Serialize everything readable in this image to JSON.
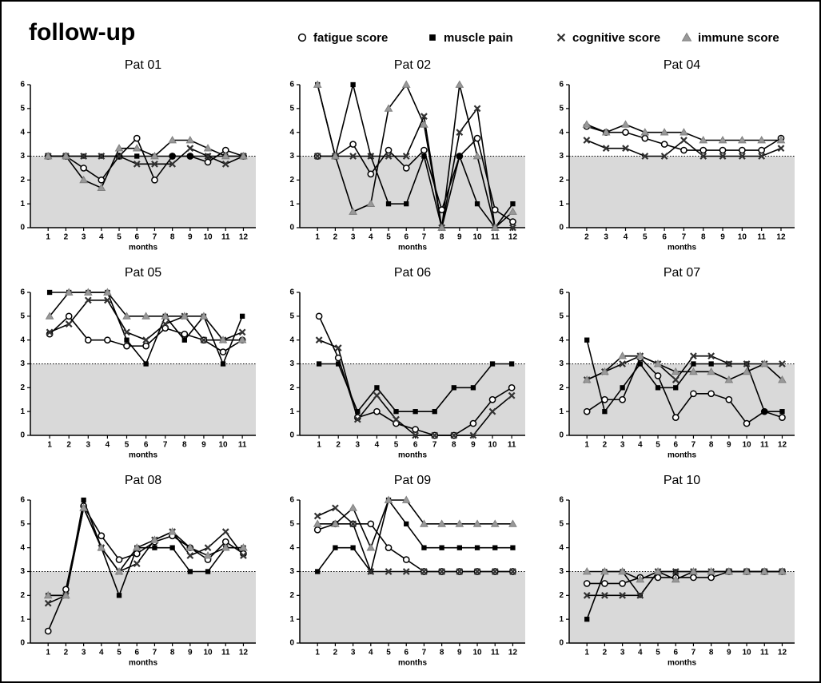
{
  "title": "follow-up",
  "chart_data": [
    {
      "type": "line",
      "title": "Pat 01",
      "x_label": "months",
      "x": [
        1,
        2,
        3,
        4,
        5,
        6,
        7,
        8,
        9,
        10,
        11,
        12
      ],
      "xlim": [
        0,
        12.7
      ],
      "xticks": [
        1,
        2,
        3,
        4,
        5,
        6,
        7,
        8,
        9,
        10,
        11,
        12
      ],
      "ylim": [
        0,
        6
      ],
      "yticks": [
        0,
        1,
        2,
        3,
        4,
        5,
        6
      ],
      "shaded_below": 3,
      "series": [
        {
          "name": "fatigue score",
          "color": "#000000",
          "marker": "circle",
          "values": [
            3,
            3,
            2.5,
            2,
            3,
            3.75,
            2,
            3,
            3,
            2.75,
            3.25,
            3
          ]
        },
        {
          "name": "muscle pain",
          "color": "#000000",
          "marker": "square",
          "values": [
            3,
            3,
            3,
            3,
            3,
            3,
            3,
            3,
            3,
            3,
            3,
            3
          ]
        },
        {
          "name": "cognitive score",
          "color": "#000000",
          "marker": "cross",
          "values": [
            3,
            3,
            3,
            3,
            3,
            2.67,
            2.67,
            2.67,
            3.33,
            3,
            2.67,
            3
          ]
        },
        {
          "name": "immune score",
          "color": "#808080",
          "marker": "triangle",
          "values": [
            3,
            3,
            2,
            1.67,
            3.33,
            3.33,
            3,
            3.67,
            3.67,
            3.33,
            3,
            3
          ]
        }
      ]
    },
    {
      "type": "line",
      "title": "Pat 02",
      "x_label": "months",
      "x": [
        1,
        2,
        3,
        4,
        5,
        6,
        7,
        8,
        9,
        10,
        11,
        12
      ],
      "xlim": [
        0,
        12.7
      ],
      "xticks": [
        1,
        2,
        3,
        4,
        5,
        6,
        7,
        8,
        9,
        10,
        11,
        12
      ],
      "ylim": [
        0,
        6
      ],
      "yticks": [
        0,
        1,
        2,
        3,
        4,
        5,
        6
      ],
      "shaded_below": 3,
      "series": [
        {
          "name": "fatigue score",
          "color": "#000000",
          "marker": "circle",
          "values": [
            3,
            3,
            3.5,
            2.25,
            3.25,
            2.5,
            3.25,
            0.75,
            3,
            3.75,
            0.75,
            0.25
          ]
        },
        {
          "name": "muscle pain",
          "color": "#000000",
          "marker": "square",
          "values": [
            6,
            3,
            6,
            3,
            1,
            1,
            3,
            0,
            3,
            1,
            0,
            1
          ]
        },
        {
          "name": "cognitive score",
          "color": "#000000",
          "marker": "cross",
          "values": [
            3,
            3,
            3,
            3,
            3,
            3,
            4.67,
            0,
            4,
            5,
            0,
            0
          ]
        },
        {
          "name": "immune score",
          "color": "#808080",
          "marker": "triangle",
          "values": [
            6,
            3,
            0.67,
            1,
            5,
            6,
            4.33,
            0,
            6,
            3,
            0,
            0.67
          ]
        }
      ]
    },
    {
      "type": "line",
      "title": "Pat 04",
      "x_label": "months",
      "x": [
        2,
        3,
        4,
        5,
        6,
        7,
        8,
        9,
        10,
        11,
        12
      ],
      "xlim": [
        1.1,
        12.7
      ],
      "xticks": [
        2,
        3,
        4,
        5,
        6,
        7,
        8,
        9,
        10,
        11,
        12
      ],
      "ylim": [
        0,
        6
      ],
      "yticks": [
        0,
        1,
        2,
        3,
        4,
        5,
        6
      ],
      "shaded_below": 3,
      "series": [
        {
          "name": "fatigue score",
          "color": "#000000",
          "marker": "circle",
          "values": [
            4.25,
            4,
            4,
            3.75,
            3.5,
            3.25,
            3.25,
            3.25,
            3.25,
            3.25,
            3.75
          ]
        },
        {
          "name": "muscle pain",
          "color": "#000000",
          "marker": "square",
          "values": [
            null,
            null,
            null,
            null,
            null,
            null,
            null,
            null,
            null,
            null,
            null
          ]
        },
        {
          "name": "cognitive score",
          "color": "#000000",
          "marker": "cross",
          "values": [
            3.67,
            3.33,
            3.33,
            3,
            3,
            3.67,
            3,
            3,
            3,
            3,
            3.33
          ]
        },
        {
          "name": "immune score",
          "color": "#808080",
          "marker": "triangle",
          "values": [
            4.33,
            4,
            4.33,
            4,
            4,
            4,
            3.67,
            3.67,
            3.67,
            3.67,
            3.67
          ]
        }
      ]
    },
    {
      "type": "line",
      "title": "Pat 05",
      "x_label": "months",
      "x": [
        1,
        2,
        3,
        4,
        5,
        6,
        7,
        8,
        9,
        10,
        11
      ],
      "xlim": [
        0,
        11.7
      ],
      "xticks": [
        1,
        2,
        3,
        4,
        5,
        6,
        7,
        8,
        9,
        10,
        11
      ],
      "ylim": [
        0,
        6
      ],
      "yticks": [
        0,
        1,
        2,
        3,
        4,
        5,
        6
      ],
      "shaded_below": 3,
      "series": [
        {
          "name": "fatigue score",
          "color": "#000000",
          "marker": "circle",
          "values": [
            4.25,
            5,
            4,
            4,
            3.75,
            3.75,
            4.5,
            4.25,
            4,
            3.5,
            4
          ]
        },
        {
          "name": "muscle pain",
          "color": "#000000",
          "marker": "square",
          "values": [
            6,
            6,
            6,
            6,
            4,
            3,
            5,
            4,
            5,
            3,
            5
          ]
        },
        {
          "name": "cognitive score",
          "color": "#000000",
          "marker": "cross",
          "values": [
            4.33,
            4.67,
            5.67,
            5.67,
            4.33,
            4,
            4.67,
            5,
            4,
            4,
            4.33
          ]
        },
        {
          "name": "immune score",
          "color": "#808080",
          "marker": "triangle",
          "values": [
            5,
            6,
            6,
            6,
            5,
            5,
            5,
            5,
            5,
            4,
            4
          ]
        }
      ]
    },
    {
      "type": "line",
      "title": "Pat 06",
      "x_label": "months",
      "x": [
        1,
        2,
        3,
        4,
        5,
        6,
        7,
        8,
        9,
        10,
        11
      ],
      "xlim": [
        0,
        11.7
      ],
      "xticks": [
        1,
        2,
        3,
        4,
        5,
        6,
        7,
        8,
        9,
        10,
        11
      ],
      "ylim": [
        0,
        6
      ],
      "yticks": [
        0,
        1,
        2,
        3,
        4,
        5,
        6
      ],
      "shaded_below": 3,
      "series": [
        {
          "name": "fatigue score",
          "color": "#000000",
          "marker": "circle",
          "values": [
            5,
            3.25,
            0.75,
            1,
            0.5,
            0.25,
            0,
            0,
            0.5,
            1.5,
            2
          ]
        },
        {
          "name": "muscle pain",
          "color": "#000000",
          "marker": "square",
          "values": [
            3,
            3,
            1,
            2,
            1,
            1,
            1,
            2,
            2,
            3,
            3
          ]
        },
        {
          "name": "cognitive score",
          "color": "#000000",
          "marker": "cross",
          "values": [
            4,
            3.67,
            0.67,
            1.67,
            0.67,
            0,
            0,
            0,
            0,
            1,
            1.67
          ]
        },
        {
          "name": "immune score",
          "color": "#808080",
          "marker": "triangle",
          "values": [
            null,
            null,
            null,
            null,
            null,
            null,
            null,
            null,
            null,
            null,
            null
          ]
        }
      ]
    },
    {
      "type": "line",
      "title": "Pat 07",
      "x_label": "months",
      "x": [
        1,
        2,
        3,
        4,
        5,
        6,
        7,
        8,
        9,
        10,
        11,
        12
      ],
      "xlim": [
        0,
        12.7
      ],
      "xticks": [
        1,
        2,
        3,
        4,
        5,
        6,
        7,
        8,
        9,
        10,
        11,
        12
      ],
      "ylim": [
        0,
        6
      ],
      "yticks": [
        0,
        1,
        2,
        3,
        4,
        5,
        6
      ],
      "shaded_below": 3,
      "series": [
        {
          "name": "fatigue score",
          "color": "#000000",
          "marker": "circle",
          "values": [
            1,
            1.5,
            1.5,
            3.25,
            2.5,
            0.75,
            1.75,
            1.75,
            1.5,
            0.5,
            1,
            0.75
          ]
        },
        {
          "name": "muscle pain",
          "color": "#000000",
          "marker": "square",
          "values": [
            4,
            1,
            2,
            3,
            2,
            2,
            3,
            3,
            3,
            3,
            1,
            1
          ]
        },
        {
          "name": "cognitive score",
          "color": "#000000",
          "marker": "cross",
          "values": [
            2.33,
            2.67,
            3,
            3.33,
            3,
            2.33,
            3.33,
            3.33,
            3,
            3,
            3,
            3
          ]
        },
        {
          "name": "immune score",
          "color": "#808080",
          "marker": "triangle",
          "values": [
            2.33,
            2.67,
            3.33,
            3.33,
            3,
            2.67,
            2.67,
            2.67,
            2.33,
            2.67,
            3,
            2.33
          ]
        }
      ]
    },
    {
      "type": "line",
      "title": "Pat 08",
      "x_label": "months",
      "x": [
        1,
        2,
        3,
        4,
        5,
        6,
        7,
        8,
        9,
        10,
        11,
        12
      ],
      "xlim": [
        0,
        12.7
      ],
      "xticks": [
        1,
        2,
        3,
        4,
        5,
        6,
        7,
        8,
        9,
        10,
        11,
        12
      ],
      "ylim": [
        0,
        6
      ],
      "yticks": [
        0,
        1,
        2,
        3,
        4,
        5,
        6
      ],
      "shaded_below": 3,
      "series": [
        {
          "name": "fatigue score",
          "color": "#000000",
          "marker": "circle",
          "values": [
            0.5,
            2.25,
            5.75,
            4.5,
            3.5,
            3.75,
            4.25,
            4.5,
            4,
            3.5,
            4.25,
            3.75
          ]
        },
        {
          "name": "muscle pain",
          "color": "#000000",
          "marker": "square",
          "values": [
            2,
            2,
            6,
            4,
            2,
            4,
            4,
            4,
            3,
            3,
            4,
            4
          ]
        },
        {
          "name": "cognitive score",
          "color": "#000000",
          "marker": "cross",
          "values": [
            1.67,
            2,
            5.67,
            4,
            3,
            3.33,
            4.33,
            4.67,
            3.67,
            4,
            4.67,
            3.67
          ]
        },
        {
          "name": "immune score",
          "color": "#808080",
          "marker": "triangle",
          "values": [
            2,
            2,
            5.67,
            4,
            3,
            4,
            4.33,
            4.67,
            4,
            3.67,
            4,
            4
          ]
        }
      ]
    },
    {
      "type": "line",
      "title": "Pat 09",
      "x_label": "months",
      "x": [
        1,
        2,
        3,
        4,
        5,
        6,
        7,
        8,
        9,
        10,
        11,
        12
      ],
      "xlim": [
        0,
        12.7
      ],
      "xticks": [
        1,
        2,
        3,
        4,
        5,
        6,
        7,
        8,
        9,
        10,
        11,
        12
      ],
      "ylim": [
        0,
        6
      ],
      "yticks": [
        0,
        1,
        2,
        3,
        4,
        5,
        6
      ],
      "shaded_below": 3,
      "series": [
        {
          "name": "fatigue score",
          "color": "#000000",
          "marker": "circle",
          "values": [
            4.75,
            5,
            5,
            5,
            4,
            3.5,
            3,
            3,
            3,
            3,
            3,
            3
          ]
        },
        {
          "name": "muscle pain",
          "color": "#000000",
          "marker": "square",
          "values": [
            3,
            4,
            4,
            3,
            6,
            5,
            4,
            4,
            4,
            4,
            4,
            4
          ]
        },
        {
          "name": "cognitive score",
          "color": "#000000",
          "marker": "cross",
          "values": [
            5.33,
            5.67,
            5,
            3,
            3,
            3,
            3,
            3,
            3,
            3,
            3,
            3
          ]
        },
        {
          "name": "immune score",
          "color": "#808080",
          "marker": "triangle",
          "values": [
            5,
            5,
            5.67,
            4,
            6,
            6,
            5,
            5,
            5,
            5,
            5,
            5
          ]
        }
      ]
    },
    {
      "type": "line",
      "title": "Pat 10",
      "x_label": "months",
      "x": [
        1,
        2,
        3,
        4,
        5,
        6,
        7,
        8,
        9,
        10,
        11,
        12
      ],
      "xlim": [
        0,
        12.7
      ],
      "xticks": [
        1,
        2,
        3,
        4,
        5,
        6,
        7,
        8,
        9,
        10,
        11,
        12
      ],
      "ylim": [
        0,
        6
      ],
      "yticks": [
        0,
        1,
        2,
        3,
        4,
        5,
        6
      ],
      "shaded_below": 3,
      "series": [
        {
          "name": "fatigue score",
          "color": "#000000",
          "marker": "circle",
          "values": [
            2.5,
            2.5,
            2.5,
            2.75,
            2.75,
            2.75,
            2.75,
            2.75,
            3,
            3,
            3,
            3
          ]
        },
        {
          "name": "muscle pain",
          "color": "#000000",
          "marker": "square",
          "values": [
            1,
            3,
            3,
            2,
            3,
            3,
            3,
            3,
            3,
            3,
            3,
            3
          ]
        },
        {
          "name": "cognitive score",
          "color": "#000000",
          "marker": "cross",
          "values": [
            2,
            2,
            2,
            2,
            3,
            3,
            3,
            3,
            3,
            3,
            3,
            3
          ]
        },
        {
          "name": "immune score",
          "color": "#808080",
          "marker": "triangle",
          "values": [
            3,
            3,
            3,
            2.67,
            3,
            2.67,
            3,
            3,
            3,
            3,
            3,
            3
          ]
        }
      ]
    }
  ]
}
